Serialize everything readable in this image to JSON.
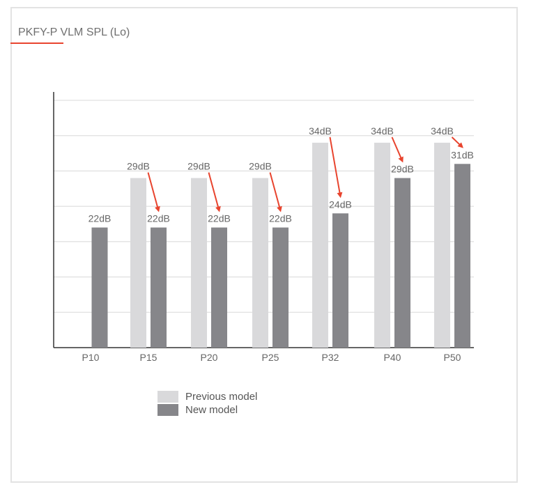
{
  "title": "PKFY-P VLM SPL (Lo)",
  "colors": {
    "previous": "#d9d9db",
    "new": "#86868a",
    "arrow": "#e8442e",
    "grid": "#d8d8d8",
    "axis": "#333333",
    "text": "#666666"
  },
  "legend": [
    {
      "key": "previous",
      "label": "Previous model"
    },
    {
      "key": "new",
      "label": "New model"
    }
  ],
  "chart_data": {
    "type": "bar",
    "categories": [
      "P10",
      "P15",
      "P20",
      "P25",
      "P32",
      "P40",
      "P50"
    ],
    "series": [
      {
        "name": "Previous model",
        "values": [
          null,
          29,
          29,
          29,
          34,
          34,
          34
        ],
        "labels": [
          "",
          "29dB",
          "29dB",
          "29dB",
          "34dB",
          "34dB",
          "34dB"
        ]
      },
      {
        "name": "New model",
        "values": [
          22,
          22,
          22,
          22,
          24,
          29,
          31
        ],
        "labels": [
          "22dB",
          "22dB",
          "22dB",
          "22dB",
          "24dB",
          "29dB",
          "31dB"
        ]
      }
    ],
    "ylim": [
      5,
      40
    ],
    "grid": true,
    "legend_position": "bottom",
    "annotations": "red arrows point from previous-model value to new-model value"
  }
}
